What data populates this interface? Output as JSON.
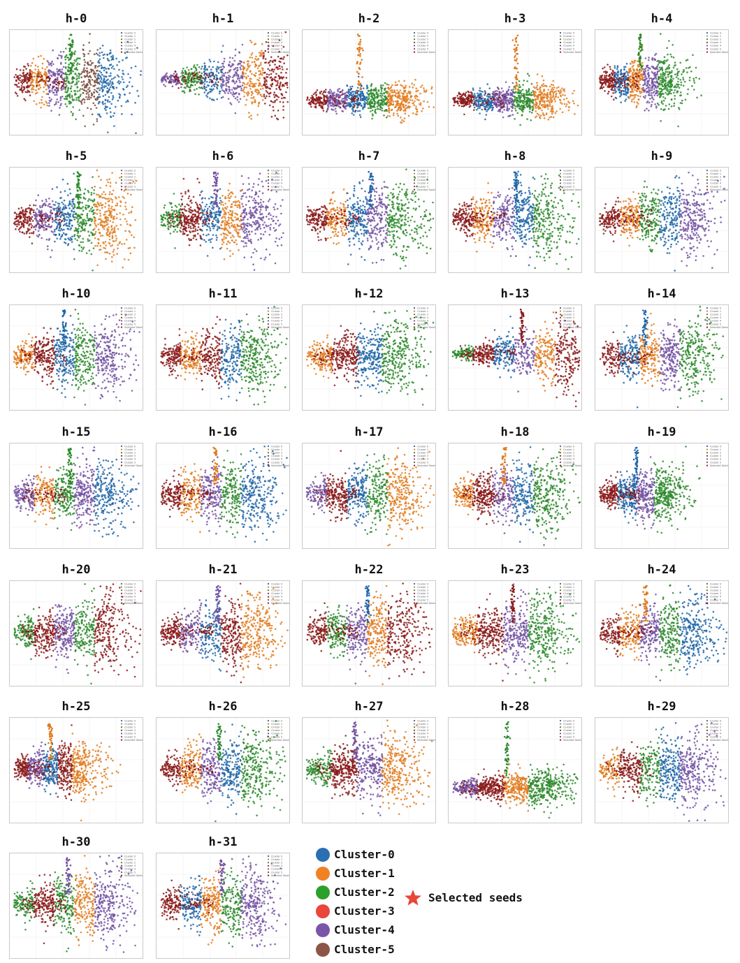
{
  "chart_data": {
    "type": "scatter",
    "panel_titles": [
      "h-0",
      "h-1",
      "h-2",
      "h-3",
      "h-4",
      "h-5",
      "h-6",
      "h-7",
      "h-8",
      "h-9",
      "h-10",
      "h-11",
      "h-12",
      "h-13",
      "h-14",
      "h-15",
      "h-16",
      "h-17",
      "h-18",
      "h-19",
      "h-20",
      "h-21",
      "h-22",
      "h-23",
      "h-24",
      "h-25",
      "h-26",
      "h-27",
      "h-28",
      "h-29",
      "h-30",
      "h-31"
    ],
    "inner_legend_entries": [
      "Cluster 0",
      "Cluster 1",
      "Cluster 2",
      "Cluster 3",
      "Cluster 4",
      "Cluster 5",
      "Selected Seeds"
    ],
    "cluster_colors": {
      "Cluster-0": "#2066a8",
      "Cluster-1": "#e07b1f",
      "Cluster-2": "#2c8a2c",
      "Cluster-3": "#8b1a1a",
      "Cluster-4": "#7352a3",
      "Cluster-5": "#7a4a3a"
    },
    "seed_color": "#8b1a1a",
    "panels": [
      {
        "bands": [
          "Cluster-3",
          "Cluster-1",
          "Cluster-4",
          "Cluster-2",
          "Cluster-5",
          "Cluster-0"
        ],
        "spike": "Cluster-2",
        "shape": "fan"
      },
      {
        "bands": [
          "Cluster-4",
          "Cluster-2",
          "Cluster-0",
          "Cluster-4",
          "Cluster-1",
          "Cluster-3"
        ],
        "spike": null,
        "shape": "cone"
      },
      {
        "bands": [
          "Cluster-3",
          "Cluster-4",
          "Cluster-0",
          "Cluster-2",
          "Cluster-1"
        ],
        "spike": "Cluster-1",
        "shape": "flat"
      },
      {
        "bands": [
          "Cluster-3",
          "Cluster-0",
          "Cluster-4",
          "Cluster-2",
          "Cluster-1"
        ],
        "spike": "Cluster-1",
        "shape": "flat"
      },
      {
        "bands": [
          "Cluster-3",
          "Cluster-0",
          "Cluster-1",
          "Cluster-4",
          "Cluster-2"
        ],
        "spike": "Cluster-2",
        "shape": "small"
      },
      {
        "bands": [
          "Cluster-3",
          "Cluster-4",
          "Cluster-0",
          "Cluster-2",
          "Cluster-1"
        ],
        "spike": "Cluster-2",
        "shape": "fan"
      },
      {
        "bands": [
          "Cluster-2",
          "Cluster-3",
          "Cluster-0",
          "Cluster-1",
          "Cluster-4"
        ],
        "spike": "Cluster-4",
        "shape": "fan"
      },
      {
        "bands": [
          "Cluster-3",
          "Cluster-1",
          "Cluster-0",
          "Cluster-4",
          "Cluster-2"
        ],
        "spike": "Cluster-0",
        "shape": "fan"
      },
      {
        "bands": [
          "Cluster-3",
          "Cluster-1",
          "Cluster-4",
          "Cluster-0",
          "Cluster-2"
        ],
        "spike": "Cluster-0",
        "shape": "fan"
      },
      {
        "bands": [
          "Cluster-3",
          "Cluster-1",
          "Cluster-2",
          "Cluster-0",
          "Cluster-4"
        ],
        "spike": null,
        "shape": "fan"
      },
      {
        "bands": [
          "Cluster-1",
          "Cluster-3",
          "Cluster-0",
          "Cluster-2",
          "Cluster-4"
        ],
        "spike": "Cluster-0",
        "shape": "fan"
      },
      {
        "bands": [
          "Cluster-3",
          "Cluster-1",
          "Cluster-3",
          "Cluster-0",
          "Cluster-2"
        ],
        "spike": null,
        "shape": "fan"
      },
      {
        "bands": [
          "Cluster-1",
          "Cluster-3",
          "Cluster-0",
          "Cluster-2"
        ],
        "spike": null,
        "shape": "fan"
      },
      {
        "bands": [
          "Cluster-2",
          "Cluster-3",
          "Cluster-0",
          "Cluster-4",
          "Cluster-1",
          "Cluster-3"
        ],
        "spike": "Cluster-3",
        "shape": "cone"
      },
      {
        "bands": [
          "Cluster-3",
          "Cluster-0",
          "Cluster-1",
          "Cluster-4",
          "Cluster-2"
        ],
        "spike": "Cluster-0",
        "shape": "fan"
      },
      {
        "bands": [
          "Cluster-4",
          "Cluster-1",
          "Cluster-2",
          "Cluster-4",
          "Cluster-0"
        ],
        "spike": "Cluster-2",
        "shape": "fan"
      },
      {
        "bands": [
          "Cluster-3",
          "Cluster-1",
          "Cluster-4",
          "Cluster-2",
          "Cluster-0"
        ],
        "spike": "Cluster-1",
        "shape": "fan"
      },
      {
        "bands": [
          "Cluster-4",
          "Cluster-3",
          "Cluster-0",
          "Cluster-2",
          "Cluster-1"
        ],
        "spike": null,
        "shape": "fan"
      },
      {
        "bands": [
          "Cluster-1",
          "Cluster-3",
          "Cluster-4",
          "Cluster-0",
          "Cluster-2"
        ],
        "spike": "Cluster-1",
        "shape": "fan"
      },
      {
        "bands": [
          "Cluster-3",
          "Cluster-0",
          "Cluster-4",
          "Cluster-2"
        ],
        "spike": "Cluster-0",
        "shape": "small"
      },
      {
        "bands": [
          "Cluster-2",
          "Cluster-3",
          "Cluster-4",
          "Cluster-2",
          "Cluster-3"
        ],
        "spike": null,
        "shape": "fan"
      },
      {
        "bands": [
          "Cluster-3",
          "Cluster-4",
          "Cluster-0",
          "Cluster-3",
          "Cluster-1"
        ],
        "spike": "Cluster-4",
        "shape": "fan"
      },
      {
        "bands": [
          "Cluster-3",
          "Cluster-2",
          "Cluster-4",
          "Cluster-1",
          "Cluster-3"
        ],
        "spike": "Cluster-0",
        "shape": "fan"
      },
      {
        "bands": [
          "Cluster-1",
          "Cluster-3",
          "Cluster-4",
          "Cluster-2"
        ],
        "spike": "Cluster-3",
        "shape": "fan"
      },
      {
        "bands": [
          "Cluster-3",
          "Cluster-1",
          "Cluster-4",
          "Cluster-2",
          "Cluster-0"
        ],
        "spike": "Cluster-1",
        "shape": "fan"
      },
      {
        "bands": [
          "Cluster-3",
          "Cluster-4",
          "Cluster-0",
          "Cluster-3",
          "Cluster-1"
        ],
        "spike": "Cluster-1",
        "shape": "small"
      },
      {
        "bands": [
          "Cluster-3",
          "Cluster-1",
          "Cluster-4",
          "Cluster-0",
          "Cluster-2"
        ],
        "spike": "Cluster-2",
        "shape": "fan"
      },
      {
        "bands": [
          "Cluster-2",
          "Cluster-3",
          "Cluster-4",
          "Cluster-1"
        ],
        "spike": "Cluster-4",
        "shape": "fan"
      },
      {
        "bands": [
          "Cluster-4",
          "Cluster-3",
          "Cluster-1",
          "Cluster-2"
        ],
        "spike": "Cluster-2",
        "shape": "flat"
      },
      {
        "bands": [
          "Cluster-1",
          "Cluster-3",
          "Cluster-2",
          "Cluster-0",
          "Cluster-4"
        ],
        "spike": null,
        "shape": "fan"
      },
      {
        "bands": [
          "Cluster-2",
          "Cluster-3",
          "Cluster-2",
          "Cluster-1",
          "Cluster-4"
        ],
        "spike": "Cluster-4",
        "shape": "fan"
      },
      {
        "bands": [
          "Cluster-3",
          "Cluster-0",
          "Cluster-1",
          "Cluster-2",
          "Cluster-4"
        ],
        "spike": "Cluster-4",
        "shape": "fan"
      }
    ],
    "legend": {
      "clusters": [
        "Cluster-0",
        "Cluster-1",
        "Cluster-2",
        "Cluster-3",
        "Cluster-4",
        "Cluster-5"
      ],
      "dot_colors": [
        "#2b6fb3",
        "#f08224",
        "#2ca02c",
        "#e8473a",
        "#7b56a8",
        "#8c5548"
      ],
      "seeds_label": "Selected seeds",
      "seeds_color": "#e8473a"
    },
    "grid": true,
    "legend_placement": "bottom-center"
  }
}
